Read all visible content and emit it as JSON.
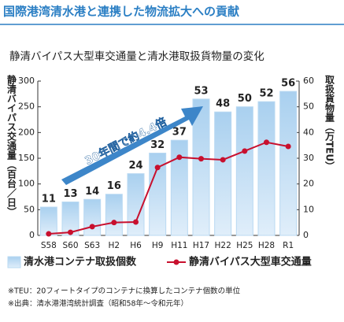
{
  "header": {
    "title": "国際港湾清水港と連携した物流拡大への貢献"
  },
  "chart_data": {
    "type": "combo",
    "title": "静清バイパス大型車交通量と清水港取扱貨物量の変化",
    "y_label": "静清バイパス交通量（百台／日）",
    "y2_label": "取扱貨物量（万TEU）",
    "annotation": "30年間で約4.4倍",
    "categories": [
      "S58",
      "S60",
      "S63",
      "H2",
      "H6",
      "H9",
      "H11",
      "H17",
      "H22",
      "H25",
      "H28",
      "R1"
    ],
    "series": [
      {
        "name": "清水港コンテナ取扱個数",
        "type": "bar",
        "axis": "y2",
        "color": "#b9d9f2",
        "values": [
          11,
          13,
          14,
          16,
          24,
          32,
          37,
          53,
          48,
          50,
          52,
          56
        ]
      },
      {
        "name": "静清バイパス大型車交通量",
        "type": "line",
        "axis": "y",
        "color": "#c8102e",
        "values": [
          3,
          6,
          17,
          25,
          26,
          132,
          152,
          149,
          147,
          164,
          181,
          173
        ]
      }
    ],
    "ylim": [
      0,
      300
    ],
    "yticks": [
      0,
      50,
      100,
      150,
      200,
      250,
      300
    ],
    "y2lim": [
      0,
      60
    ],
    "y2ticks": [
      0,
      10,
      20,
      30,
      40,
      50,
      60
    ],
    "grid": false
  },
  "notes": [
    "※TEU：20フィートタイプのコンテナに換算したコンテナ個数の単位",
    "※出典：清水港港湾統計調査（昭和58年～令和元年）"
  ]
}
